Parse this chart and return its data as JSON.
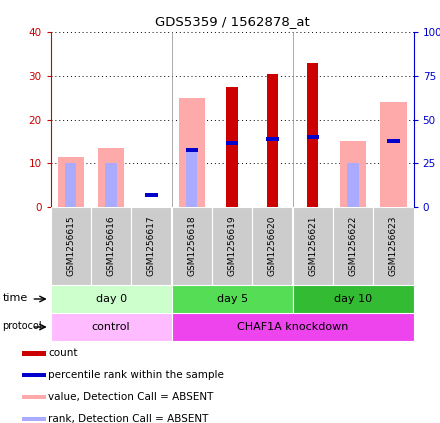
{
  "title": "GDS5359 / 1562878_at",
  "samples": [
    "GSM1256615",
    "GSM1256616",
    "GSM1256617",
    "GSM1256618",
    "GSM1256619",
    "GSM1256620",
    "GSM1256621",
    "GSM1256622",
    "GSM1256623"
  ],
  "pink_bar_heights": [
    11.5,
    13.5,
    0,
    25.0,
    0,
    0,
    0,
    15.0,
    24.0
  ],
  "red_bar_heights": [
    0,
    0,
    0,
    0,
    27.5,
    30.5,
    33.0,
    0,
    0
  ],
  "blue_rank_heights": [
    0,
    0,
    2.7,
    13.0,
    14.7,
    15.5,
    16.0,
    0,
    15.0
  ],
  "light_blue_bar_heights": [
    10.0,
    10.0,
    0,
    13.5,
    0,
    0,
    0,
    10.0,
    0
  ],
  "ylim_left": [
    0,
    40
  ],
  "ylim_right": [
    0,
    100
  ],
  "yticks_left": [
    0,
    10,
    20,
    30,
    40
  ],
  "yticks_right": [
    0,
    25,
    50,
    75,
    100
  ],
  "ytick_labels_left": [
    "0",
    "10",
    "20",
    "30",
    "40"
  ],
  "ytick_labels_right": [
    "0",
    "25",
    "50",
    "75",
    "100%"
  ],
  "left_tick_color": "#cc0000",
  "right_tick_color": "#0000cc",
  "time_groups": [
    {
      "label": "day 0",
      "start": 0,
      "end": 3,
      "color": "#ccffcc"
    },
    {
      "label": "day 5",
      "start": 3,
      "end": 6,
      "color": "#55dd55"
    },
    {
      "label": "day 10",
      "start": 6,
      "end": 9,
      "color": "#33bb33"
    }
  ],
  "protocol_groups": [
    {
      "label": "control",
      "start": 0,
      "end": 3,
      "color": "#ffbbff"
    },
    {
      "label": "CHAF1A knockdown",
      "start": 3,
      "end": 9,
      "color": "#ee44ee"
    }
  ],
  "pink_bar_color": "#ffaaaa",
  "red_bar_color": "#cc0000",
  "blue_dot_color": "#0000cc",
  "light_blue_color": "#aaaaff",
  "background_color": "#ffffff",
  "plot_bg_color": "#ffffff",
  "sample_box_color": "#cccccc",
  "legend_items": [
    {
      "color": "#cc0000",
      "label": "count"
    },
    {
      "color": "#0000cc",
      "label": "percentile rank within the sample"
    },
    {
      "color": "#ffaaaa",
      "label": "value, Detection Call = ABSENT"
    },
    {
      "color": "#aaaaff",
      "label": "rank, Detection Call = ABSENT"
    }
  ]
}
